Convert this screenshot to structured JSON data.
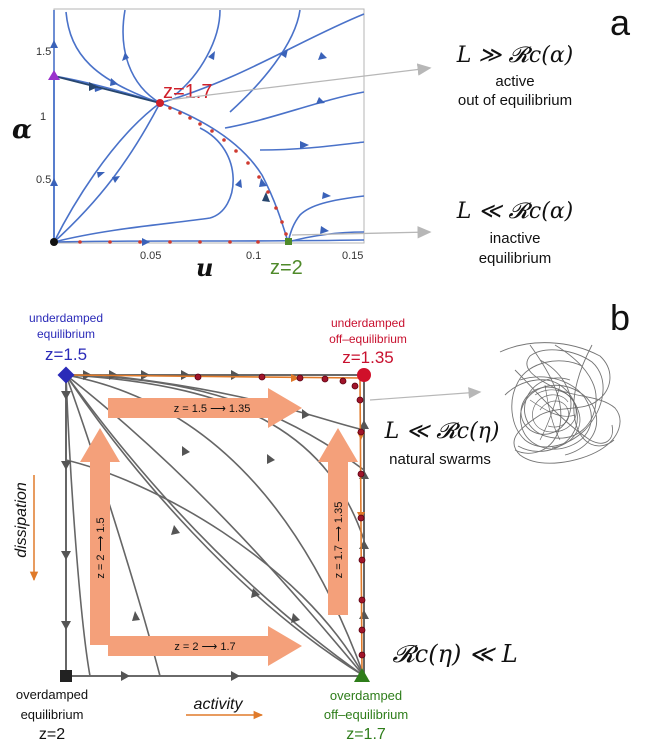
{
  "panel_a": {
    "letter": "a",
    "y_axis_symbol": "α",
    "x_axis_symbol": "u",
    "y_ticks": [
      "0.5",
      "1",
      "1.5"
    ],
    "x_ticks": [
      "0.05",
      "0.1",
      "0.15"
    ],
    "fixed_point_top": "z=1.7",
    "fixed_point_bottom": "z=2",
    "top_relation": "L ≫ 𝓡c(α)",
    "top_line1": "active",
    "top_line2": "out of equilibrium",
    "bottom_relation": "L ≪ 𝓡c(α)",
    "bottom_line1": "inactive",
    "bottom_line2": "equilibrium",
    "colors": {
      "flow": "#4a72c9",
      "fixed_red": "#d0202a",
      "fixed_green": "#4f8a2a",
      "fixed_purple": "#9a32cc",
      "axis_black": "#000000"
    }
  },
  "panel_b": {
    "letter": "b",
    "top_left_line1": "underdamped",
    "top_left_line2": "equilibrium",
    "top_left_z": "z=1.5",
    "top_right_line1": "underdamped",
    "top_right_line2": "off–equilibrium",
    "top_right_z": "z=1.35",
    "bottom_left_line1": "overdamped",
    "bottom_left_line2": "equilibrium",
    "bottom_left_z": "z=2",
    "bottom_right_line1": "overdamped",
    "bottom_right_line2": "off–equilibrium",
    "bottom_right_z": "z=1.7",
    "arrow_top": "z = 1.5  ⟶  1.35",
    "arrow_bottom": "z = 2  ⟶  1.7",
    "arrow_left": "z = 2  ⟶  1.5",
    "arrow_right": "z = 1.7  ⟶  1.35",
    "axis_activity": "activity",
    "axis_dissipation": "dissipation",
    "relation_top": "L ≪ 𝓡c(η)",
    "swarm_label": "natural swarms",
    "relation_bottom": "𝓡c(η) ≪ L",
    "colors": {
      "flow": "#666666",
      "orange": "#f4a07a",
      "orange_line": "#e07a2a",
      "blue": "#2a2ab8",
      "red": "#c8102e",
      "green": "#2e7d1a",
      "black": "#222222"
    }
  }
}
